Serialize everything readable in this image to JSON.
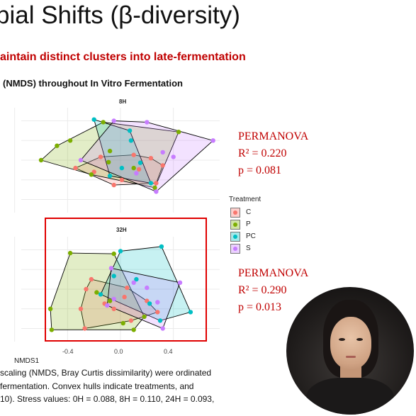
{
  "slide": {
    "title": "bial Shifts (β-diversity)",
    "subtitle": "aintain distinct clusters into late-fermentation",
    "chart_title": "(NMDS) throughout In Vitro Fermentation"
  },
  "panels": {
    "top_label": "8H",
    "bottom_label": "32H"
  },
  "stats": {
    "top": {
      "name": "PERMANOVA",
      "r2": "R² = 0.220",
      "p": "p = 0.081"
    },
    "bottom": {
      "name": "PERMANOVA",
      "r2": "R² = 0.290",
      "p": "p = 0.013"
    }
  },
  "legend": {
    "title": "Treatment",
    "items": [
      {
        "label": "C",
        "color": "#f8766d"
      },
      {
        "label": "P",
        "color": "#7cae00"
      },
      {
        "label": "PC",
        "color": "#00bfc4"
      },
      {
        "label": "S",
        "color": "#c77cff"
      }
    ]
  },
  "axis": {
    "xlabel": "NMDS1",
    "ticks": [
      "-0.4",
      "0.0",
      "0.4"
    ]
  },
  "caption": {
    "line1": " scaling (NMDS, Bray Curtis dissimilarity) were ordinated",
    "line2": "fermentation. Convex hulls indicate treatments, and",
    "line3": "10). Stress values: 0H = 0.088, 8H = 0.110, 24H = 0.093,"
  },
  "colors": {
    "accent_red": "#c00000",
    "highlight_box": "#e00000"
  },
  "chart_data": [
    {
      "type": "scatter",
      "title": "8H",
      "xlabel": "",
      "ylabel": "",
      "xlim": [
        -0.75,
        0.75
      ],
      "ylim": [
        -0.8,
        0.8
      ],
      "grid": true,
      "legend": "right",
      "series": [
        {
          "name": "C",
          "color": "#f8766d",
          "points": [
            [
              -0.34,
              -0.12
            ],
            [
              -0.2,
              -0.18
            ],
            [
              -0.05,
              -0.38
            ],
            [
              0.14,
              -0.14
            ],
            [
              0.23,
              0.03
            ],
            [
              0.32,
              -0.08
            ],
            [
              0.27,
              -0.35
            ],
            [
              0.1,
              0.08
            ],
            [
              -0.15,
              0.05
            ],
            [
              0.01,
              -0.3
            ]
          ]
        },
        {
          "name": "P",
          "color": "#7cae00",
          "points": [
            [
              -0.6,
              0.0
            ],
            [
              -0.48,
              0.22
            ],
            [
              -0.38,
              0.3
            ],
            [
              -0.13,
              0.58
            ],
            [
              -0.08,
              0.14
            ],
            [
              -0.09,
              -0.03
            ],
            [
              -0.22,
              -0.22
            ],
            [
              0.1,
              -0.12
            ],
            [
              0.26,
              -0.42
            ],
            [
              0.44,
              0.43
            ]
          ]
        },
        {
          "name": "PC",
          "color": "#00bfc4",
          "points": [
            [
              -0.2,
              0.62
            ],
            [
              0.08,
              0.3
            ],
            [
              0.15,
              -0.04
            ],
            [
              -0.08,
              -0.24
            ],
            [
              0.23,
              -0.35
            ],
            [
              0.07,
              0.45
            ],
            [
              0.01,
              -0.12
            ]
          ]
        },
        {
          "name": "S",
          "color": "#c77cff",
          "points": [
            [
              -0.05,
              0.6
            ],
            [
              0.2,
              0.58
            ],
            [
              0.7,
              0.3
            ],
            [
              0.32,
              0.12
            ],
            [
              0.27,
              -0.48
            ],
            [
              -0.3,
              0.0
            ],
            [
              0.12,
              -0.2
            ],
            [
              0.4,
              0.05
            ]
          ]
        }
      ]
    },
    {
      "type": "scatter",
      "title": "32H",
      "xlabel": "NMDS1",
      "ylabel": "",
      "xlim": [
        -0.75,
        0.75
      ],
      "ylim": [
        -0.8,
        0.8
      ],
      "x_ticks": [
        -0.4,
        0.0,
        0.4
      ],
      "grid": true,
      "legend": "right",
      "series": [
        {
          "name": "C",
          "color": "#f8766d",
          "points": [
            [
              -0.22,
              0.15
            ],
            [
              -0.26,
              0.0
            ],
            [
              -0.3,
              -0.3
            ],
            [
              -0.27,
              -0.6
            ],
            [
              -0.05,
              -0.3
            ],
            [
              0.03,
              -0.12
            ],
            [
              0.2,
              -0.18
            ],
            [
              0.08,
              -0.48
            ],
            [
              0.28,
              -0.35
            ],
            [
              -0.12,
              -0.22
            ],
            [
              0.05,
              0.02
            ]
          ]
        },
        {
          "name": "P",
          "color": "#7cae00",
          "points": [
            [
              -0.38,
              0.55
            ],
            [
              -0.53,
              -0.3
            ],
            [
              -0.52,
              -0.62
            ],
            [
              -0.05,
              0.54
            ],
            [
              0.02,
              -0.52
            ],
            [
              0.1,
              -0.62
            ],
            [
              -0.18,
              -0.05
            ],
            [
              -0.08,
              -0.18
            ],
            [
              0.18,
              -0.42
            ]
          ]
        },
        {
          "name": "PC",
          "color": "#00bfc4",
          "points": [
            [
              0.31,
              0.65
            ],
            [
              0.53,
              -0.35
            ],
            [
              0.0,
              0.58
            ],
            [
              0.12,
              0.15
            ],
            [
              -0.05,
              0.2
            ],
            [
              0.22,
              -0.22
            ],
            [
              -0.15,
              -0.08
            ],
            [
              0.3,
              -0.48
            ]
          ]
        },
        {
          "name": "S",
          "color": "#c77cff",
          "points": [
            [
              0.45,
              0.1
            ],
            [
              0.32,
              -0.6
            ],
            [
              -0.07,
              0.32
            ],
            [
              -0.1,
              -0.25
            ],
            [
              0.2,
              0.02
            ],
            [
              0.1,
              0.1
            ],
            [
              -0.05,
              -0.15
            ],
            [
              0.28,
              -0.2
            ]
          ]
        }
      ]
    }
  ]
}
